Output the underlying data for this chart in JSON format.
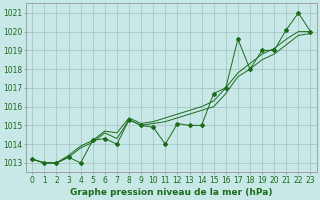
{
  "title": "Graphe pression niveau de la mer (hPa)",
  "x": [
    0,
    1,
    2,
    3,
    4,
    5,
    6,
    7,
    8,
    9,
    10,
    11,
    12,
    13,
    14,
    15,
    16,
    17,
    18,
    19,
    20,
    21,
    22,
    23
  ],
  "y_main": [
    1013.2,
    1013.0,
    1013.0,
    1013.3,
    1013.0,
    1014.2,
    1014.3,
    1014.0,
    1015.3,
    1015.0,
    1014.9,
    1014.0,
    1015.1,
    1015.0,
    1015.0,
    1016.7,
    1017.0,
    1019.6,
    1018.0,
    1019.0,
    1019.0,
    1020.1,
    1021.0,
    1020.0
  ],
  "y_line2": [
    1013.2,
    1013.0,
    1013.0,
    1013.3,
    1013.8,
    1014.1,
    1014.6,
    1014.3,
    1015.3,
    1015.0,
    1015.1,
    1015.2,
    1015.4,
    1015.6,
    1015.8,
    1016.0,
    1016.7,
    1017.6,
    1018.0,
    1018.5,
    1018.8,
    1019.3,
    1019.8,
    1019.9
  ],
  "y_line3": [
    1013.2,
    1013.0,
    1013.0,
    1013.4,
    1013.9,
    1014.2,
    1014.7,
    1014.6,
    1015.4,
    1015.1,
    1015.2,
    1015.4,
    1015.6,
    1015.8,
    1016.0,
    1016.3,
    1017.0,
    1017.8,
    1018.3,
    1018.8,
    1019.1,
    1019.6,
    1020.0,
    1020.0
  ],
  "bg_color": "#c8e8e8",
  "grid_color": "#a0c0c0",
  "line_color": "#1a6b1a",
  "marker": "D",
  "marker_size": 2.0,
  "ylim": [
    1012.5,
    1021.5
  ],
  "yticks": [
    1013,
    1014,
    1015,
    1016,
    1017,
    1018,
    1019,
    1020,
    1021
  ],
  "xlim": [
    -0.5,
    23.5
  ],
  "tick_fontsize": 5.5,
  "title_fontsize": 6.5,
  "linewidth": 0.7
}
